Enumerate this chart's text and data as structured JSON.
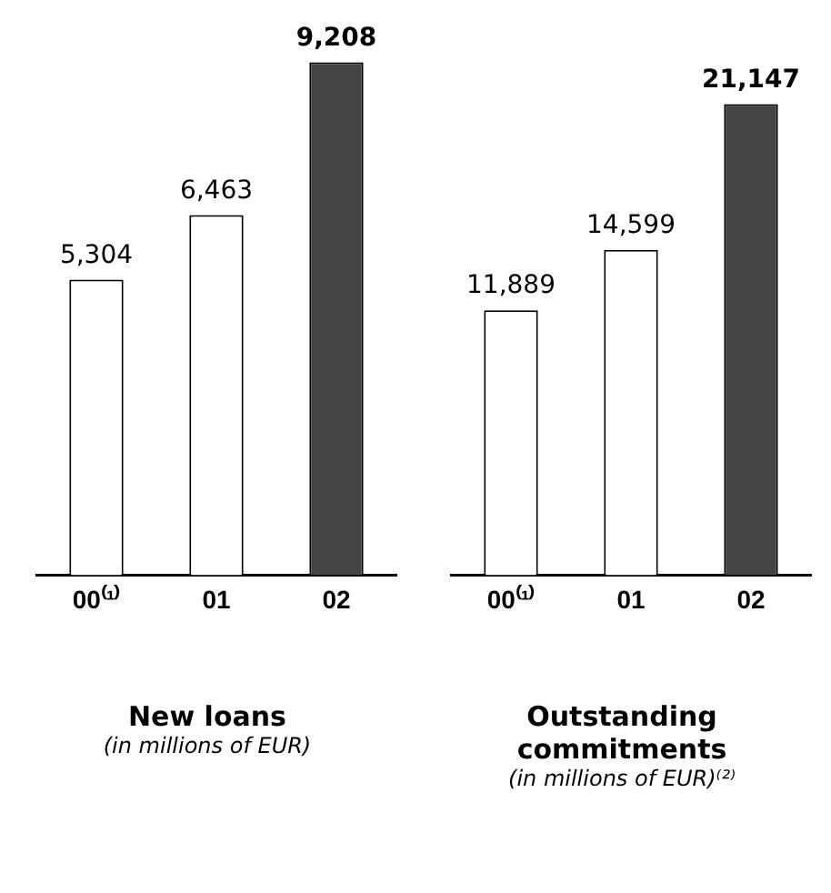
{
  "chart_data": [
    {
      "type": "bar",
      "title": "New loans",
      "subtitle": "(in millions of EUR)",
      "categories": [
        "00⁽¹⁾",
        "01",
        "02"
      ],
      "values": [
        5304,
        6463,
        9208
      ],
      "value_labels": [
        "5,304",
        "6,463",
        "9,208"
      ],
      "colors": [
        "#ffffff",
        "#ffffff",
        "#444444"
      ],
      "legend": false,
      "grid": false,
      "tick_labels": "x"
    },
    {
      "type": "bar",
      "title": "Outstanding commitments",
      "subtitle": "(in millions of EUR)⁽²⁾",
      "categories": [
        "00⁽¹⁾",
        "01",
        "02"
      ],
      "values": [
        11889,
        14599,
        21147
      ],
      "value_labels": [
        "11,889",
        "14,599",
        "21,147"
      ],
      "colors": [
        "#ffffff",
        "#ffffff",
        "#444444"
      ],
      "legend": false,
      "grid": false,
      "tick_labels": "x"
    }
  ]
}
